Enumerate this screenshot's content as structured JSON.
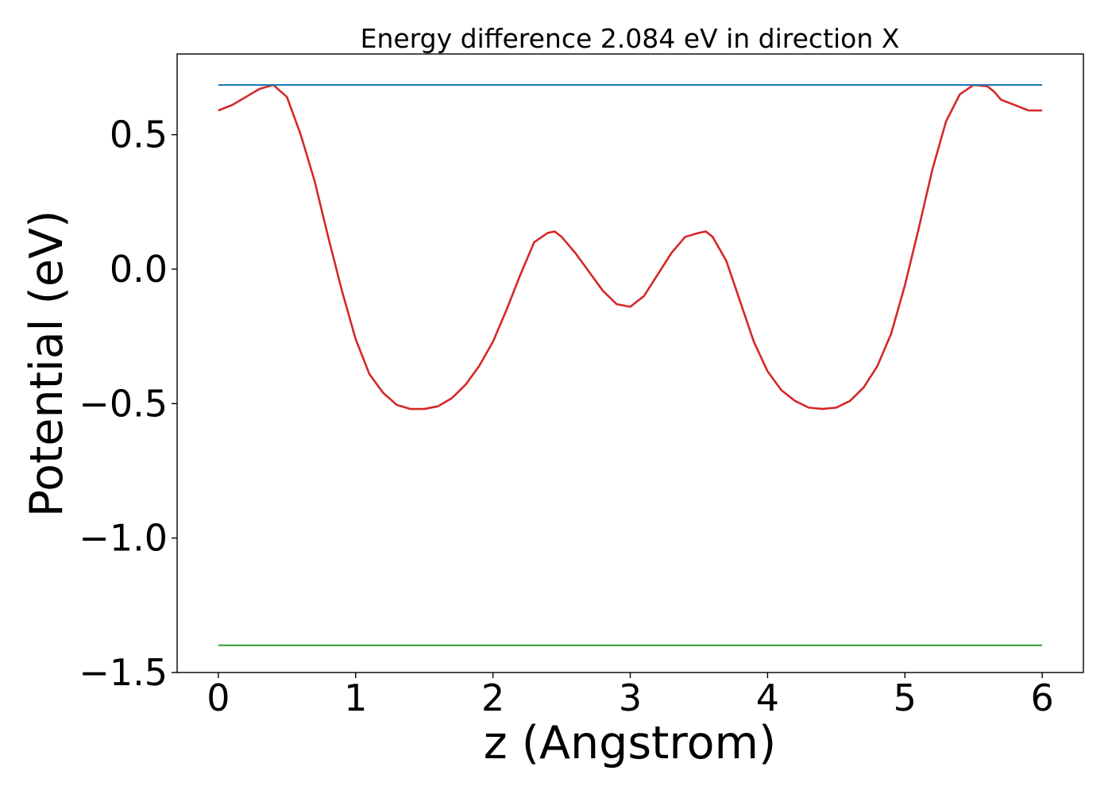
{
  "chart_data": {
    "type": "line",
    "title": "Energy difference 2.084 eV in direction X",
    "xlabel": "z (Angstrom)",
    "ylabel": "Potential (eV)",
    "xlim": [
      -0.3,
      6.3
    ],
    "ylim": [
      -1.5,
      0.8
    ],
    "x_ticks": [
      0,
      1,
      2,
      3,
      4,
      5,
      6
    ],
    "x_tick_labels": [
      "0",
      "1",
      "2",
      "3",
      "4",
      "5",
      "6"
    ],
    "y_ticks": [
      0.5,
      0.0,
      -0.5,
      -1.0,
      -1.5
    ],
    "y_tick_labels": [
      "0.5",
      "0.0",
      "−0.5",
      "−1.0",
      "−1.5"
    ],
    "grid": false,
    "legend": false,
    "series": [
      {
        "color": "#d62728",
        "style": "line",
        "x": [
          0.0,
          0.1,
          0.2,
          0.3,
          0.4,
          0.5,
          0.6,
          0.7,
          0.8,
          0.9,
          1.0,
          1.1,
          1.2,
          1.3,
          1.4,
          1.5,
          1.6,
          1.7,
          1.8,
          1.9,
          2.0,
          2.1,
          2.2,
          2.3,
          2.4,
          2.45,
          2.5,
          2.6,
          2.7,
          2.8,
          2.9,
          3.0,
          3.1,
          3.2,
          3.3,
          3.4,
          3.5,
          3.55,
          3.6,
          3.7,
          3.8,
          3.9,
          4.0,
          4.1,
          4.2,
          4.3,
          4.4,
          4.5,
          4.6,
          4.7,
          4.8,
          4.9,
          5.0,
          5.1,
          5.2,
          5.3,
          5.4,
          5.5,
          5.6,
          5.65,
          5.7,
          5.8,
          5.9,
          6.0
        ],
        "y": [
          0.59,
          0.61,
          0.64,
          0.67,
          0.685,
          0.64,
          0.5,
          0.33,
          0.12,
          -0.08,
          -0.26,
          -0.39,
          -0.46,
          -0.505,
          -0.52,
          -0.52,
          -0.51,
          -0.48,
          -0.43,
          -0.36,
          -0.27,
          -0.15,
          -0.02,
          0.1,
          0.135,
          0.14,
          0.12,
          0.06,
          -0.01,
          -0.08,
          -0.13,
          -0.14,
          -0.1,
          -0.02,
          0.06,
          0.12,
          0.135,
          0.14,
          0.12,
          0.03,
          -0.12,
          -0.27,
          -0.38,
          -0.45,
          -0.49,
          -0.515,
          -0.52,
          -0.515,
          -0.49,
          -0.44,
          -0.36,
          -0.24,
          -0.06,
          0.15,
          0.37,
          0.55,
          0.65,
          0.685,
          0.68,
          0.66,
          0.63,
          0.61,
          0.59,
          0.59
        ]
      },
      {
        "color": "#1f77b4",
        "style": "hline",
        "x": [
          0,
          6
        ],
        "y": [
          0.685,
          0.685
        ]
      },
      {
        "color": "#2ca02c",
        "style": "hline",
        "x": [
          0,
          6
        ],
        "y": [
          -1.399,
          -1.399
        ]
      }
    ]
  }
}
